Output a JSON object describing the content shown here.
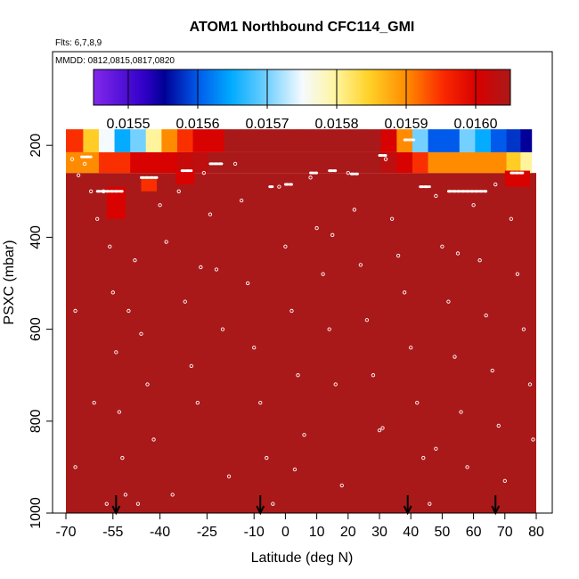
{
  "chart_data": {
    "type": "heatmap",
    "title": "ATOM1 Northbound CFC114_GMI",
    "flights_label": "Flts: 6,7,8,9",
    "dates_label": "MMDD: 0812,0815,0817,0820",
    "xlabel": "Latitude (deg N)",
    "ylabel": "PSXC (mbar)",
    "xlim": [
      -70,
      80
    ],
    "ylim": [
      1000,
      0
    ],
    "x_ticks": [
      -70,
      -55,
      -40,
      -25,
      -10,
      0,
      10,
      20,
      30,
      40,
      50,
      60,
      70,
      80
    ],
    "y_ticks": [
      200,
      400,
      600,
      800,
      1000
    ],
    "colorbar": {
      "min": 0.01545,
      "max": 0.01605,
      "ticks": [
        0.0155,
        0.0156,
        0.0157,
        0.0158,
        0.0159,
        0.016
      ],
      "tick_labels": [
        "0.0155",
        "0.0156",
        "0.0157",
        "0.0158",
        "0.0159",
        "0.0160"
      ]
    },
    "background_value": 0.01605,
    "upper_band": {
      "pressure_top": 165,
      "pressure_mid": 215,
      "pressure_bottom": 260,
      "latitudes": [
        -67,
        -62,
        -57,
        -52,
        -47,
        -42,
        -37,
        -32,
        -27,
        -22,
        -17,
        -12,
        -7,
        -2,
        3,
        8,
        13,
        18,
        23,
        28,
        33,
        38,
        43,
        48,
        53,
        58,
        63,
        68,
        73,
        77
      ],
      "top_values": [
        0.01595,
        0.01585,
        0.01575,
        0.01565,
        0.0157,
        0.0158,
        0.0159,
        0.01595,
        0.016,
        0.016,
        0.01605,
        0.01605,
        0.01605,
        0.01605,
        0.01605,
        0.01605,
        0.01605,
        0.01605,
        0.01605,
        0.01605,
        0.016,
        0.0159,
        0.0157,
        0.0156,
        0.0156,
        0.0157,
        0.01565,
        0.0156,
        0.01558,
        0.01555
      ],
      "mid_values": [
        0.0159,
        0.0159,
        0.01595,
        0.01595,
        0.016,
        0.016,
        0.016,
        0.01602,
        0.01603,
        0.01605,
        0.01605,
        0.01605,
        0.01605,
        0.01605,
        0.01605,
        0.01605,
        0.01605,
        0.01605,
        0.01605,
        0.01605,
        0.01603,
        0.016,
        0.01595,
        0.0159,
        0.0159,
        0.0159,
        0.0159,
        0.0159,
        0.01585,
        0.0158
      ]
    },
    "mid_patches": [
      {
        "lat": [
          -57,
          -51
        ],
        "p": [
          290,
          360
        ],
        "value": 0.016
      },
      {
        "lat": [
          -46,
          -41
        ],
        "p": [
          270,
          300
        ],
        "value": 0.01595
      },
      {
        "lat": [
          -35,
          -29
        ],
        "p": [
          255,
          285
        ],
        "value": 0.016
      },
      {
        "lat": [
          70,
          78
        ],
        "p": [
          255,
          290
        ],
        "value": 0.016
      }
    ],
    "points": [
      {
        "lat": -68,
        "psxc": 230
      },
      {
        "lat": -66,
        "psxc": 265
      },
      {
        "lat": -64,
        "psxc": 240
      },
      {
        "lat": -62,
        "psxc": 300
      },
      {
        "lat": -60,
        "psxc": 360
      },
      {
        "lat": -58,
        "psxc": 300
      },
      {
        "lat": -56,
        "psxc": 420
      },
      {
        "lat": -55,
        "psxc": 520
      },
      {
        "lat": -54,
        "psxc": 650
      },
      {
        "lat": -53,
        "psxc": 780
      },
      {
        "lat": -52,
        "psxc": 880
      },
      {
        "lat": -51,
        "psxc": 960
      },
      {
        "lat": -50,
        "psxc": 560
      },
      {
        "lat": -48,
        "psxc": 450
      },
      {
        "lat": -46,
        "psxc": 610
      },
      {
        "lat": -44,
        "psxc": 720
      },
      {
        "lat": -42,
        "psxc": 840
      },
      {
        "lat": -40,
        "psxc": 330
      },
      {
        "lat": -38,
        "psxc": 410
      },
      {
        "lat": -36,
        "psxc": 960
      },
      {
        "lat": -34,
        "psxc": 300
      },
      {
        "lat": -32,
        "psxc": 540
      },
      {
        "lat": -30,
        "psxc": 680
      },
      {
        "lat": -28,
        "psxc": 760
      },
      {
        "lat": -26,
        "psxc": 260
      },
      {
        "lat": -24,
        "psxc": 350
      },
      {
        "lat": -22,
        "psxc": 470
      },
      {
        "lat": -20,
        "psxc": 600
      },
      {
        "lat": -18,
        "psxc": 920
      },
      {
        "lat": -16,
        "psxc": 240
      },
      {
        "lat": -14,
        "psxc": 320
      },
      {
        "lat": -12,
        "psxc": 500
      },
      {
        "lat": -10,
        "psxc": 640
      },
      {
        "lat": -8,
        "psxc": 760
      },
      {
        "lat": -6,
        "psxc": 880
      },
      {
        "lat": -4,
        "psxc": 980
      },
      {
        "lat": -2,
        "psxc": 290
      },
      {
        "lat": 0,
        "psxc": 420
      },
      {
        "lat": 2,
        "psxc": 560
      },
      {
        "lat": 4,
        "psxc": 700
      },
      {
        "lat": 6,
        "psxc": 830
      },
      {
        "lat": 8,
        "psxc": 270
      },
      {
        "lat": 10,
        "psxc": 380
      },
      {
        "lat": 12,
        "psxc": 480
      },
      {
        "lat": 14,
        "psxc": 600
      },
      {
        "lat": 16,
        "psxc": 720
      },
      {
        "lat": 18,
        "psxc": 940
      },
      {
        "lat": 20,
        "psxc": 260
      },
      {
        "lat": 22,
        "psxc": 340
      },
      {
        "lat": 24,
        "psxc": 460
      },
      {
        "lat": 26,
        "psxc": 580
      },
      {
        "lat": 28,
        "psxc": 700
      },
      {
        "lat": 30,
        "psxc": 820
      },
      {
        "lat": 32,
        "psxc": 230
      },
      {
        "lat": 34,
        "psxc": 360
      },
      {
        "lat": 36,
        "psxc": 440
      },
      {
        "lat": 38,
        "psxc": 520
      },
      {
        "lat": 40,
        "psxc": 640
      },
      {
        "lat": 42,
        "psxc": 760
      },
      {
        "lat": 44,
        "psxc": 880
      },
      {
        "lat": 46,
        "psxc": 980
      },
      {
        "lat": 48,
        "psxc": 310
      },
      {
        "lat": 50,
        "psxc": 420
      },
      {
        "lat": 52,
        "psxc": 540
      },
      {
        "lat": 54,
        "psxc": 660
      },
      {
        "lat": 56,
        "psxc": 780
      },
      {
        "lat": 58,
        "psxc": 900
      },
      {
        "lat": 60,
        "psxc": 330
      },
      {
        "lat": 62,
        "psxc": 450
      },
      {
        "lat": 64,
        "psxc": 570
      },
      {
        "lat": 66,
        "psxc": 690
      },
      {
        "lat": 68,
        "psxc": 810
      },
      {
        "lat": 70,
        "psxc": 930
      },
      {
        "lat": 72,
        "psxc": 360
      },
      {
        "lat": 74,
        "psxc": 480
      },
      {
        "lat": 76,
        "psxc": 600
      },
      {
        "lat": 78,
        "psxc": 720
      },
      {
        "lat": 79,
        "psxc": 840
      },
      {
        "lat": -67,
        "psxc": 560
      },
      {
        "lat": -67,
        "psxc": 900
      },
      {
        "lat": -61,
        "psxc": 760
      },
      {
        "lat": -57,
        "psxc": 980
      },
      {
        "lat": -47,
        "psxc": 980
      },
      {
        "lat": 31,
        "psxc": 815
      },
      {
        "lat": 48,
        "psxc": 860
      },
      {
        "lat": -27,
        "psxc": 465
      },
      {
        "lat": 3,
        "psxc": 905
      },
      {
        "lat": 15,
        "psxc": 395
      },
      {
        "lat": 55,
        "psxc": 435
      },
      {
        "lat": 67,
        "psxc": 285
      }
    ],
    "level_runs": [
      {
        "lat": [
          -65,
          -62
        ],
        "psxc": 225
      },
      {
        "lat": [
          -60,
          -52
        ],
        "psxc": 300
      },
      {
        "lat": [
          -46,
          -41
        ],
        "psxc": 270
      },
      {
        "lat": [
          -33,
          -30
        ],
        "psxc": 255
      },
      {
        "lat": [
          -24,
          -20
        ],
        "psxc": 240
      },
      {
        "lat": [
          -5,
          -4
        ],
        "psxc": 290
      },
      {
        "lat": [
          0,
          2
        ],
        "psxc": 285
      },
      {
        "lat": [
          8,
          10
        ],
        "psxc": 260
      },
      {
        "lat": [
          14,
          16
        ],
        "psxc": 255
      },
      {
        "lat": [
          21,
          23
        ],
        "psxc": 262
      },
      {
        "lat": [
          30,
          32
        ],
        "psxc": 222
      },
      {
        "lat": [
          38,
          41
        ],
        "psxc": 188
      },
      {
        "lat": [
          43,
          46
        ],
        "psxc": 290
      },
      {
        "lat": [
          52,
          64
        ],
        "psxc": 300
      },
      {
        "lat": [
          72,
          76
        ],
        "psxc": 260
      }
    ],
    "arrows_lat": [
      -54,
      -8,
      39,
      67
    ]
  }
}
